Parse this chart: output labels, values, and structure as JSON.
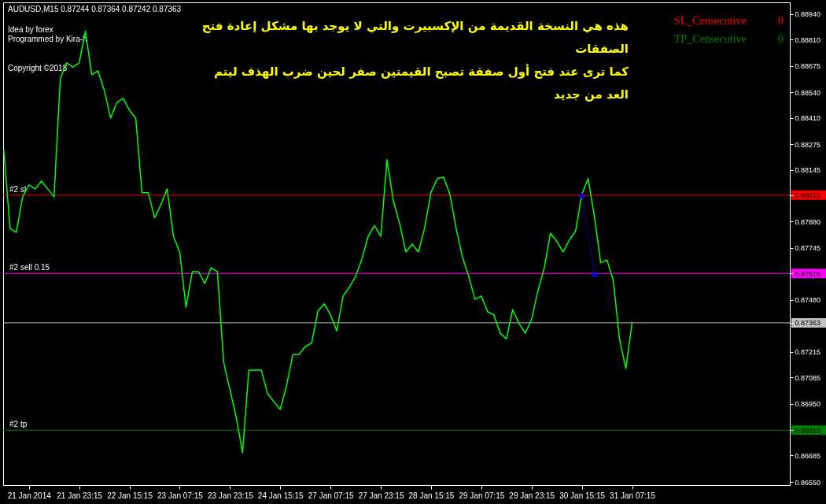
{
  "chart_data": {
    "type": "line",
    "categories": [
      null,
      null,
      null,
      null,
      "21 Jan 2014",
      null,
      null,
      null,
      null,
      null,
      null,
      null,
      "21 Jan 23:15",
      null,
      null,
      null,
      null,
      null,
      null,
      null,
      "22 Jan 15:15",
      null,
      null,
      null,
      null,
      null,
      null,
      null,
      "23 Jan 07:15",
      null,
      null,
      null,
      null,
      null,
      null,
      null,
      "23 Jan 23:15",
      null,
      null,
      null,
      null,
      null,
      null,
      null,
      "24 Jan 15:15",
      null,
      null,
      null,
      null,
      null,
      null,
      null,
      "27 Jan 07:15",
      null,
      null,
      null,
      null,
      null,
      null,
      null,
      "27 Jan 23:15",
      null,
      null,
      null,
      null,
      null,
      null,
      null,
      "28 Jan 15:15",
      null,
      null,
      null,
      null,
      null,
      null,
      null,
      "29 Jan 07:15",
      null,
      null,
      null,
      null,
      null,
      null,
      null,
      "29 Jan 23:15",
      null,
      null,
      null,
      null,
      null,
      null,
      null,
      "30 Jan 15:15",
      null,
      null,
      null,
      null,
      null,
      null,
      null,
      "31 Jan 07:15",
      null,
      null,
      null,
      null,
      null,
      null,
      null,
      null,
      null,
      null,
      null,
      null,
      null,
      null,
      null,
      null,
      null,
      null,
      null,
      null,
      null,
      null,
      null,
      null,
      null
    ],
    "series": [
      {
        "color": "#00ff00",
        "values": [
          0.88248,
          0.87845,
          0.87825,
          0.88006,
          0.88067,
          0.88047,
          0.88087,
          0.88047,
          0.88006,
          0.8861,
          0.88691,
          0.8867,
          0.88691,
          0.88852,
          0.8863,
          0.8865,
          0.8855,
          0.88409,
          0.88489,
          0.8851,
          0.88449,
          0.88409,
          0.88027,
          0.88027,
          0.879,
          0.87966,
          0.88047,
          0.87805,
          0.87725,
          0.87443,
          0.87624,
          0.87624,
          0.87564,
          0.87644,
          0.87624,
          0.87161,
          0.8702,
          0.8688,
          0.867,
          0.87121,
          0.87121,
          0.87121,
          0.87,
          0.8696,
          0.8692,
          0.87041,
          0.872,
          0.87202,
          0.87242,
          0.8726,
          0.87423,
          0.8746,
          0.87403,
          0.87322,
          0.875,
          0.87544,
          0.876,
          0.8769,
          0.87805,
          0.8786,
          0.87805,
          0.88196,
          0.87986,
          0.8787,
          0.87725,
          0.87765,
          0.87725,
          0.8785,
          0.8803,
          0.881,
          0.88107,
          0.8802,
          0.87845,
          0.877,
          0.876,
          0.87483,
          0.875,
          0.8742,
          0.87403,
          0.8731,
          0.87282,
          0.8743,
          0.8736,
          0.8731,
          0.8738,
          0.87524,
          0.8764,
          0.8782,
          0.8778,
          0.87725,
          0.87785,
          0.8783,
          0.8802,
          0.881,
          0.87906,
          0.8767,
          0.87684,
          0.8758,
          0.8728,
          0.8713,
          0.87363,
          null,
          null,
          null,
          null,
          null,
          null,
          null,
          null,
          null,
          null,
          null,
          null,
          null,
          null,
          null,
          null,
          null,
          null,
          null,
          null,
          null,
          null,
          null,
          null,
          null
        ]
      },
      {
        "color": "#0000ff",
        "line_style": "dotted",
        "marker": "triangle",
        "values": [
          null,
          null,
          null,
          null,
          null,
          null,
          null,
          null,
          null,
          null,
          null,
          null,
          null,
          null,
          null,
          null,
          null,
          null,
          null,
          null,
          null,
          null,
          null,
          null,
          null,
          null,
          null,
          null,
          null,
          null,
          null,
          null,
          null,
          null,
          null,
          null,
          null,
          null,
          null,
          null,
          null,
          null,
          null,
          null,
          null,
          null,
          null,
          null,
          null,
          null,
          null,
          null,
          null,
          null,
          null,
          null,
          null,
          null,
          null,
          null,
          null,
          null,
          null,
          null,
          null,
          null,
          null,
          null,
          null,
          null,
          null,
          null,
          null,
          null,
          null,
          null,
          null,
          null,
          null,
          null,
          null,
          null,
          null,
          null,
          null,
          null,
          null,
          null,
          null,
          null,
          null,
          null,
          0.88015,
          null,
          0.87615,
          null,
          null,
          null,
          null,
          null,
          null,
          null,
          null,
          null,
          null,
          null,
          null,
          null,
          null,
          null,
          null,
          null,
          null,
          null,
          null,
          null,
          null,
          null,
          null,
          null,
          null,
          null,
          null,
          null,
          null,
          null
        ]
      }
    ],
    "ylim": [
      0.86534,
      0.89
    ],
    "yticks": [
      {
        "value": 0.8894,
        "label": "0.88940"
      },
      {
        "value": 0.8881,
        "label": "0.88810"
      },
      {
        "value": 0.88675,
        "label": "0.88675"
      },
      {
        "value": 0.8854,
        "label": "0.88540"
      },
      {
        "value": 0.8841,
        "label": "0.88410"
      },
      {
        "value": 0.88275,
        "label": "0.88275"
      },
      {
        "value": 0.88145,
        "label": "0.88145"
      },
      {
        "value": 0.88015,
        "label": "0.88015"
      },
      {
        "value": 0.8788,
        "label": "0.87880"
      },
      {
        "value": 0.87745,
        "label": "0.87745"
      },
      {
        "value": 0.87615,
        "label": "0.87615"
      },
      {
        "value": 0.8748,
        "label": "0.87480"
      },
      {
        "value": 0.87363,
        "label": "0.87363"
      },
      {
        "value": 0.87215,
        "label": "0.87215"
      },
      {
        "value": 0.87085,
        "label": "0.87085"
      },
      {
        "value": 0.8695,
        "label": "0.86950"
      },
      {
        "value": 0.86815,
        "label": "0.86815"
      },
      {
        "value": 0.86685,
        "label": "0.86685"
      },
      {
        "value": 0.8655,
        "label": "0.86550"
      }
    ],
    "ref_lines": [
      {
        "axis": "y",
        "value": 0.88015,
        "label": "#2 sl",
        "color": "#ff0000"
      },
      {
        "axis": "y",
        "value": 0.87615,
        "label": "#2 sell 0.15",
        "color": "#ff00ff"
      },
      {
        "axis": "y",
        "value": 0.87363,
        "label": null,
        "color": "#c0c0c0"
      },
      {
        "axis": "y",
        "value": 0.86815,
        "label": "#2 tp",
        "color": "#008000"
      }
    ],
    "annotations": [
      "AUDUSD,M15  0.87244 0.87364 0.87242 0.87363",
      "Idea by forex",
      "Programmed by Kira-h",
      "Copyright ©2018",
      "هذه هي النسخة القديمة من الإكسبيرت والتي لا يوجد بها مشكل إعادة فتح الصفقات",
      "كما ترى عند فتح أول صفقة تصبح القيمتين صفر لحين ضرب الهذف ليتم العد من جديد",
      "SL_Censecutive",
      "0",
      "TP_Censecutive",
      "0"
    ],
    "grid": false
  }
}
